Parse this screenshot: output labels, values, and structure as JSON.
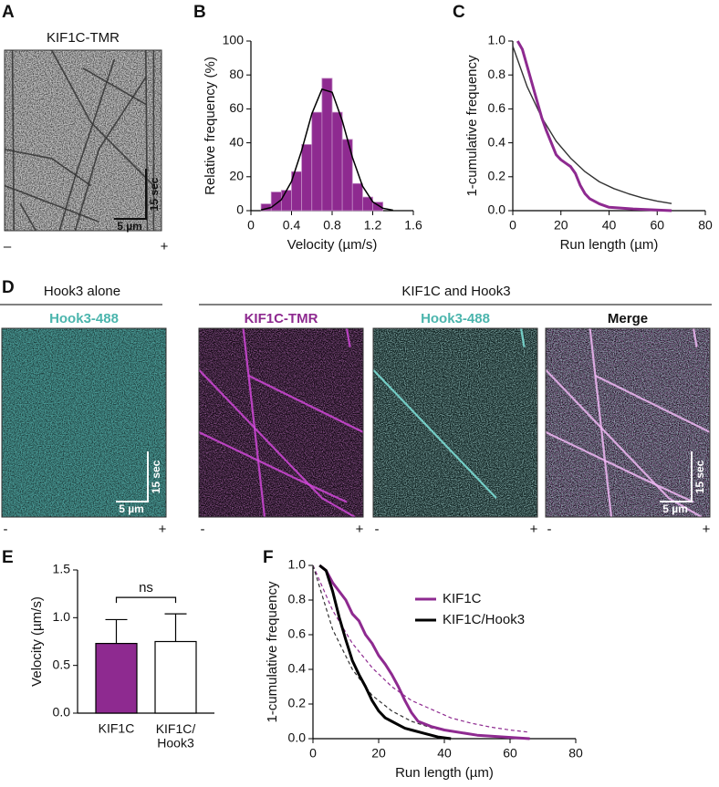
{
  "panel_labels": [
    "A",
    "B",
    "C",
    "D",
    "E",
    "F"
  ],
  "panel_a": {
    "title": "KIF1C-TMR",
    "time_scale": "15 sec",
    "length_scale": "5 µm",
    "minus": "–",
    "plus": "+"
  },
  "panel_d": {
    "group_1": "Hook3 alone",
    "group_2": "KIF1C and Hook3",
    "channels": [
      "Hook3-488",
      "KIF1C-TMR",
      "Hook3-488",
      "Merge"
    ],
    "time_scale": "15 sec",
    "length_scale": "5 µm",
    "minus": "-",
    "plus": "+"
  },
  "chart_data": [
    {
      "type": "histogram",
      "x_label": "Velocity (µm/s)",
      "y_label": "Relative frequency (%)",
      "bins": [
        0.1,
        0.2,
        0.3,
        0.4,
        0.5,
        0.6,
        0.7,
        0.8,
        0.9,
        1.0,
        1.1,
        1.2,
        1.3
      ],
      "values": [
        4,
        11,
        12,
        23,
        39,
        58,
        78,
        58,
        42,
        16,
        8,
        5
      ],
      "color": "#8e2a90",
      "fit": {
        "color": "#000000",
        "x": [
          0.1,
          0.2,
          0.3,
          0.4,
          0.5,
          0.6,
          0.7,
          0.8,
          0.9,
          1.0,
          1.1,
          1.2,
          1.3,
          1.4
        ],
        "values": [
          0.4,
          1.9,
          6.5,
          17.2,
          35.5,
          57.1,
          71.6,
          69.8,
          53.0,
          31.4,
          14.4,
          5.2,
          1.4,
          0.3
        ]
      },
      "xlim": [
        0,
        1.6
      ],
      "xticks": [
        0,
        0.4,
        0.8,
        1.2,
        1.6
      ],
      "ylim": [
        0,
        100
      ],
      "yticks": [
        0,
        20,
        40,
        60,
        80,
        100
      ]
    },
    {
      "type": "line",
      "x_label": "Run length (µm)",
      "y_label": "1-cumulative frequency",
      "series": [
        {
          "color": "#8e2a90",
          "x": [
            2,
            4,
            6,
            8,
            10,
            12,
            14,
            16,
            18,
            20,
            22,
            24,
            26,
            28,
            30,
            32,
            36,
            40,
            50,
            66
          ],
          "values": [
            1.0,
            0.95,
            0.85,
            0.75,
            0.65,
            0.55,
            0.47,
            0.4,
            0.33,
            0.3,
            0.28,
            0.26,
            0.22,
            0.15,
            0.1,
            0.07,
            0.04,
            0.02,
            0.01,
            0.0
          ]
        }
      ],
      "fits": [
        {
          "color": "#333333",
          "x": [
            0,
            6,
            12,
            18,
            24,
            30,
            36,
            42,
            48,
            54,
            60,
            66
          ],
          "values": [
            0.97,
            0.73,
            0.55,
            0.41,
            0.31,
            0.23,
            0.17,
            0.13,
            0.1,
            0.075,
            0.056,
            0.042
          ]
        }
      ],
      "xlim": [
        0,
        80
      ],
      "xticks": [
        0,
        20,
        40,
        60,
        80
      ],
      "ylim": [
        0,
        1
      ],
      "yticks": [
        {
          "value": 0,
          "label": "0.0"
        },
        0.2,
        0.4,
        0.6,
        0.8,
        {
          "value": 1,
          "label": "1.0"
        }
      ]
    },
    {
      "type": "bar",
      "y_label": "Velocity (µm/s)",
      "categories": [
        "KIF1C",
        "KIF1C/\nHook3"
      ],
      "values": [
        0.73,
        0.75
      ],
      "errors": [
        0.25,
        0.29
      ],
      "colors": [
        "#8e2a90",
        "#ffffff"
      ],
      "annotation": "ns",
      "ylim": [
        0,
        1.5
      ],
      "yticks": [
        {
          "value": 0,
          "label": "0.0"
        },
        0.5,
        {
          "value": 1,
          "label": "1.0"
        },
        1.5
      ]
    },
    {
      "type": "line",
      "x_label": "Run length (µm)",
      "y_label": "1-cumulative frequency",
      "series": [
        {
          "name": "KIF1C",
          "color": "#8e2a90",
          "x": [
            2,
            4,
            6,
            8,
            10,
            12,
            14,
            16,
            18,
            20,
            22,
            24,
            26,
            28,
            30,
            32,
            36,
            40,
            50,
            66
          ],
          "values": [
            1.0,
            0.97,
            0.9,
            0.85,
            0.8,
            0.72,
            0.68,
            0.6,
            0.55,
            0.48,
            0.43,
            0.37,
            0.3,
            0.22,
            0.15,
            0.1,
            0.07,
            0.05,
            0.02,
            0.0
          ]
        },
        {
          "name": "KIF1C/Hook3",
          "color": "#000000",
          "x": [
            2,
            4,
            6,
            8,
            10,
            12,
            14,
            16,
            18,
            20,
            22,
            24,
            26,
            28,
            30,
            34,
            38,
            42
          ],
          "values": [
            1.0,
            0.97,
            0.85,
            0.7,
            0.57,
            0.45,
            0.37,
            0.3,
            0.22,
            0.16,
            0.12,
            0.1,
            0.08,
            0.06,
            0.05,
            0.03,
            0.01,
            0.0
          ]
        }
      ],
      "fits": [
        {
          "color": "#8e2a90",
          "dashed": true,
          "x": [
            0,
            6,
            12,
            18,
            24,
            30,
            36,
            42,
            48,
            54,
            60,
            66
          ],
          "values": [
            1.0,
            0.74,
            0.55,
            0.41,
            0.3,
            0.22,
            0.17,
            0.12,
            0.09,
            0.067,
            0.05,
            0.037
          ]
        },
        {
          "color": "#333333",
          "dashed": true,
          "x": [
            0,
            6,
            12,
            18,
            24,
            30,
            36,
            42
          ],
          "values": [
            1.0,
            0.63,
            0.4,
            0.25,
            0.16,
            0.1,
            0.063,
            0.04
          ]
        }
      ],
      "legend": "upper right",
      "xlim": [
        0,
        80
      ],
      "xticks": [
        0,
        20,
        40,
        60,
        80
      ],
      "ylim": [
        0,
        1
      ],
      "yticks": [
        {
          "value": 0,
          "label": "0.0"
        },
        0.2,
        0.4,
        0.6,
        0.8,
        {
          "value": 1,
          "label": "1.0"
        }
      ]
    }
  ]
}
